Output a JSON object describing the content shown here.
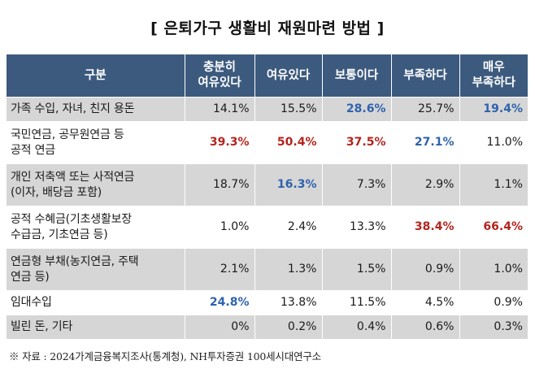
{
  "title": "[ 은퇴가구 생활비 재원마련 방법 ]",
  "table": {
    "headers": [
      "구분",
      "충분히\n여유있다",
      "여유있다",
      "보통이다",
      "부족하다",
      "매우\n부족하다"
    ],
    "rows": [
      {
        "label": "가족 수입, 자녀, 친지 용돈",
        "values": [
          "14.1%",
          "15.5%",
          "28.6%",
          "25.7%",
          "19.4%"
        ],
        "highlights": [
          "",
          "",
          "blue",
          "",
          "blue"
        ]
      },
      {
        "label": "국민연금, 공무원연금 등\n공적 연금",
        "values": [
          "39.3%",
          "50.4%",
          "37.5%",
          "27.1%",
          "11.0%"
        ],
        "highlights": [
          "red",
          "red",
          "red",
          "blue",
          ""
        ]
      },
      {
        "label": "개인 저축액 또는 사적연금\n(이자, 배당금 포함)",
        "values": [
          "18.7%",
          "16.3%",
          "7.3%",
          "2.9%",
          "1.1%"
        ],
        "highlights": [
          "",
          "blue",
          "",
          "",
          ""
        ]
      },
      {
        "label": "공적 수혜금(기초생활보장\n수급금, 기초연금 등)",
        "values": [
          "1.0%",
          "2.4%",
          "13.3%",
          "38.4%",
          "66.4%"
        ],
        "highlights": [
          "",
          "",
          "",
          "red",
          "red"
        ]
      },
      {
        "label": "연금형 부채(농지연금, 주택\n연금 등)",
        "values": [
          "2.1%",
          "1.3%",
          "1.5%",
          "0.9%",
          "1.0%"
        ],
        "highlights": [
          "",
          "",
          "",
          "",
          ""
        ]
      },
      {
        "label": "임대수입",
        "values": [
          "24.8%",
          "13.8%",
          "11.5%",
          "4.5%",
          "0.9%"
        ],
        "highlights": [
          "blue",
          "",
          "",
          "",
          ""
        ]
      },
      {
        "label": "빌린 돈, 기타",
        "values": [
          "0%",
          "0.2%",
          "0.4%",
          "0.6%",
          "0.3%"
        ],
        "highlights": [
          "",
          "",
          "",
          "",
          ""
        ]
      }
    ]
  },
  "source": "※ 자료 : 2024가계금융복지조사(통계청), NH투자증권 100세시대연구소",
  "colors": {
    "header_bg": "#3c5a7e",
    "row_shade": "#d6d6d6",
    "highlight_red": "#b3251e",
    "highlight_blue": "#2e63ae"
  }
}
